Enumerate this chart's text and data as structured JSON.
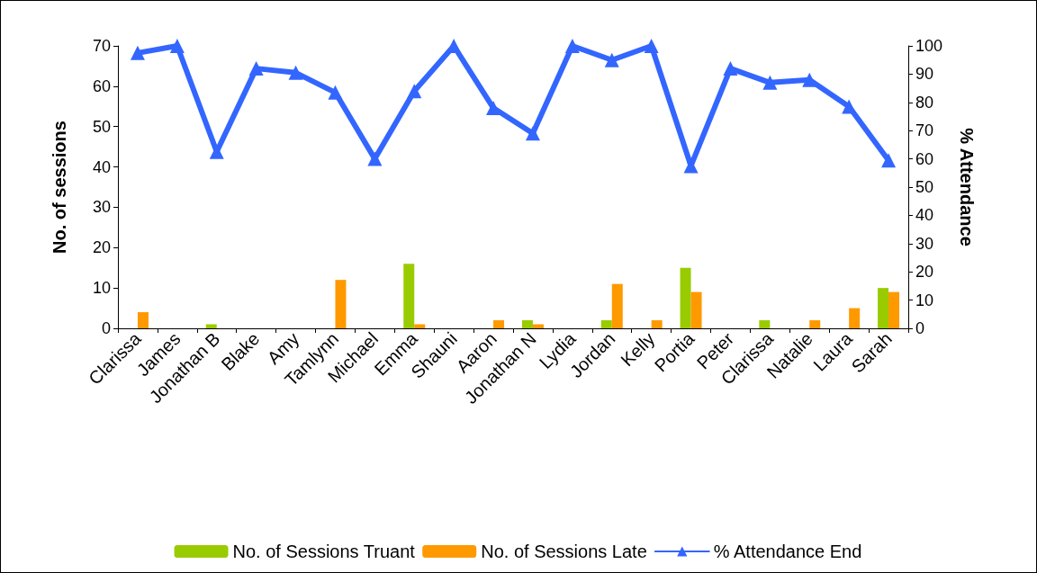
{
  "chart_data": {
    "type": "bar",
    "ylabel": "No. of sessions",
    "y2label": "% Attendance",
    "categories": [
      "Clarissa",
      "James",
      "Jonathan B",
      "Blake",
      "Amy",
      "Tamlynn",
      "Michael",
      "Emma",
      "Shauni",
      "Aaron",
      "Jonathan N",
      "Lydia",
      "Jordan",
      "Kelly",
      "Portia",
      "Peter",
      "Clarissa",
      "Natalie",
      "Laura",
      "Sarah"
    ],
    "series": [
      {
        "name": "No. of Sessions Truant",
        "color": "#99cc00",
        "values": [
          0,
          0,
          1,
          0,
          0,
          0,
          0,
          16,
          0,
          0,
          2,
          0,
          2,
          0,
          15,
          0,
          2,
          0,
          0,
          10
        ]
      },
      {
        "name": "No. of Sessions Late",
        "color": "#ff9900",
        "values": [
          4,
          0,
          0,
          0,
          0,
          12,
          0,
          1,
          0,
          2,
          1,
          0,
          11,
          2,
          9,
          0,
          0,
          2,
          5,
          9
        ]
      },
      {
        "name": "% Attendance End",
        "type": "line",
        "axis": "y2",
        "color": "#3366ff",
        "values": [
          97.5,
          100,
          62.5,
          92,
          90.5,
          83.5,
          60,
          84,
          100,
          78,
          69,
          100,
          95,
          100,
          57.5,
          92,
          87,
          88,
          78.5,
          59.5
        ]
      }
    ],
    "ylim": [
      0,
      70
    ],
    "yticks": [
      0,
      10,
      20,
      30,
      40,
      50,
      60,
      70
    ],
    "y2lim": [
      0,
      100
    ],
    "y2ticks": [
      0,
      10,
      20,
      30,
      40,
      50,
      60,
      70,
      80,
      90,
      100
    ],
    "grid": false,
    "legend": "bottom",
    "marker": "triangle",
    "line_style": "solid"
  }
}
